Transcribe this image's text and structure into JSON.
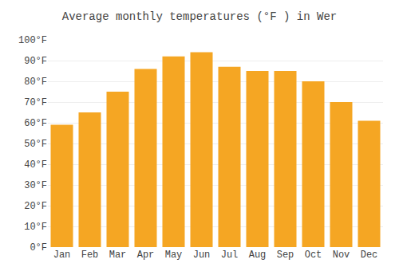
{
  "chart_data": {
    "type": "bar",
    "title": "Average monthly temperatures (°F ) in Wer",
    "categories": [
      "Jan",
      "Feb",
      "Mar",
      "Apr",
      "May",
      "Jun",
      "Jul",
      "Aug",
      "Sep",
      "Oct",
      "Nov",
      "Dec"
    ],
    "values": [
      59,
      65,
      75,
      86,
      92,
      94,
      87,
      85,
      85,
      80,
      70,
      61
    ],
    "color": "#F5A623",
    "ylim": [
      0,
      100
    ],
    "yticks": [
      {
        "value": 0,
        "label": "0°F"
      },
      {
        "value": 10,
        "label": "10°F"
      },
      {
        "value": 20,
        "label": "20°F"
      },
      {
        "value": 30,
        "label": "30°F"
      },
      {
        "value": 40,
        "label": "40°F"
      },
      {
        "value": 50,
        "label": "50°F"
      },
      {
        "value": 60,
        "label": "60°F"
      },
      {
        "value": 70,
        "label": "70°F"
      },
      {
        "value": 80,
        "label": "80°F"
      },
      {
        "value": 90,
        "label": "90°F"
      },
      {
        "value": 100,
        "label": "100°F"
      }
    ],
    "grid": true
  }
}
